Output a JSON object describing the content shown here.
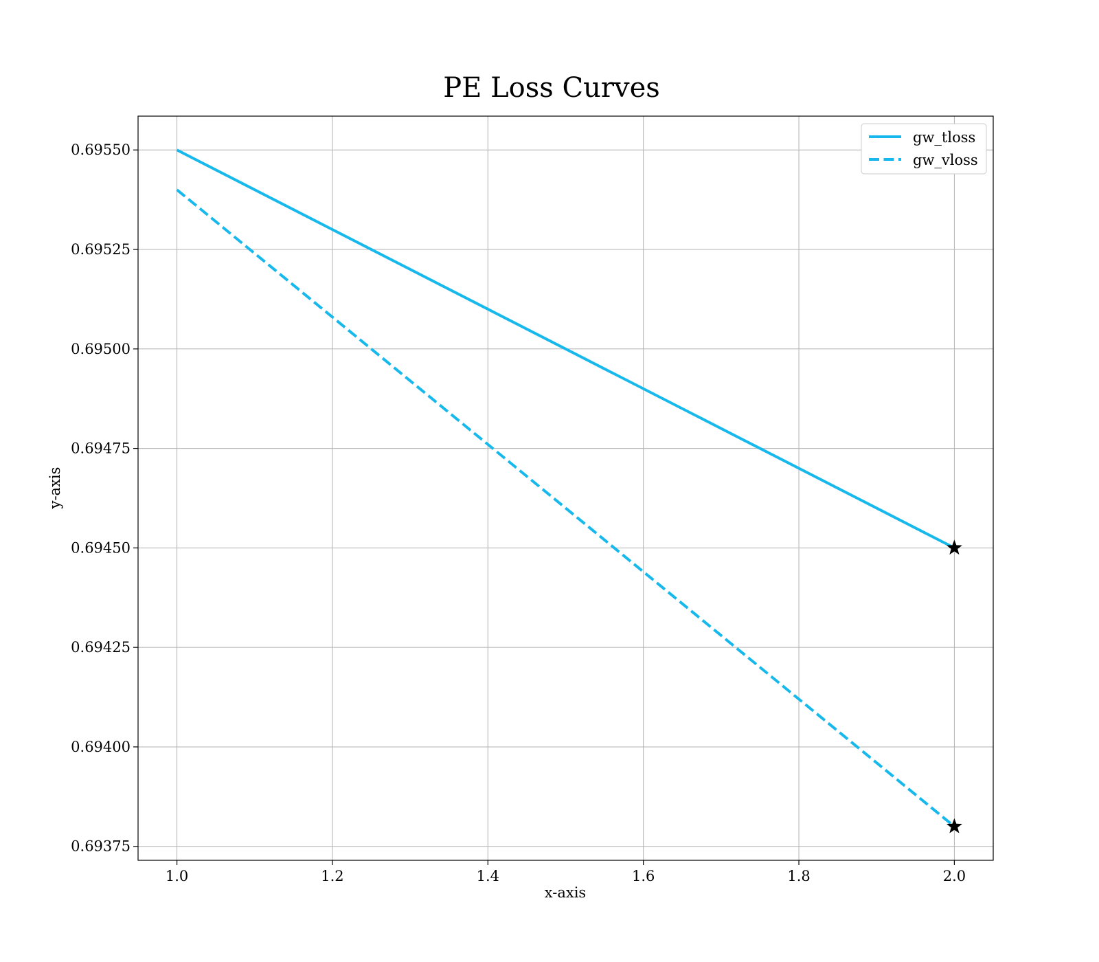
{
  "chart_data": {
    "type": "line",
    "title": "PE Loss Curves",
    "xlabel": "x-axis",
    "ylabel": "y-axis",
    "xlim": [
      0.95,
      2.05
    ],
    "ylim": [
      0.693715,
      0.695585
    ],
    "xticks": [
      1.0,
      1.2,
      1.4,
      1.6,
      1.8,
      2.0
    ],
    "xtick_labels": [
      "1.0",
      "1.2",
      "1.4",
      "1.6",
      "1.8",
      "2.0"
    ],
    "yticks": [
      0.69375,
      0.694,
      0.69425,
      0.6945,
      0.69475,
      0.695,
      0.69525,
      0.6955
    ],
    "ytick_labels": [
      "0.69375",
      "0.69400",
      "0.69425",
      "0.69450",
      "0.69475",
      "0.69500",
      "0.69525",
      "0.69550"
    ],
    "grid": true,
    "legend_position": "top-right",
    "series": [
      {
        "name": "gw_tloss",
        "x": [
          1,
          2
        ],
        "values": [
          0.6955,
          0.6945
        ],
        "style": "solid",
        "color": "#17b8eb",
        "end_marker": "star"
      },
      {
        "name": "gw_vloss",
        "x": [
          1,
          2
        ],
        "values": [
          0.6954,
          0.6938
        ],
        "style": "dashed",
        "color": "#17b8eb",
        "end_marker": "star"
      }
    ]
  }
}
